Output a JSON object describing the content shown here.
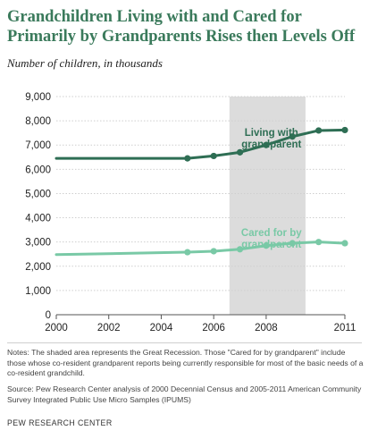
{
  "title": "Grandchildren Living with and Cared for Primarily by Grandparents Rises then Levels Off",
  "subtitle": "Number of children, in thousands",
  "notes": "Notes: The shaded area represents the Great Recession. Those \"Cared for by grandparent\" include those whose co-resident grandparent reports being currently responsible for most of the basic needs of a co-resident grandchild.",
  "source": "Source: Pew Research Center analysis of 2000 Decennial Census and 2005-2011 American Community Survey Integrated Public Use Micro Samples (IPUMS)",
  "footer": "PEW RESEARCH CENTER",
  "colors": {
    "title": "#3a7a5b",
    "living": "#2e6e54",
    "cared": "#79c9a6",
    "shade": "#dcdcdc"
  },
  "chart_data": {
    "type": "line",
    "title": "",
    "xlabel": "",
    "ylabel": "",
    "xlim": [
      2000,
      2011
    ],
    "ylim": [
      0,
      9000
    ],
    "yticks": [
      0,
      1000,
      2000,
      3000,
      4000,
      5000,
      6000,
      7000,
      8000,
      9000
    ],
    "ytick_labels": [
      "0",
      "1,000",
      "2,000",
      "3,000",
      "4,000",
      "5,000",
      "6,000",
      "7,000",
      "8,000",
      "9,000"
    ],
    "xticks": [
      2000,
      2002,
      2004,
      2006,
      2008,
      2011
    ],
    "xtick_labels": [
      "2000",
      "2002",
      "2004",
      "2006",
      "2008",
      "2011"
    ],
    "shaded_range": [
      2006.6,
      2009.5
    ],
    "grid": true,
    "series": [
      {
        "name": "Living with grandparent",
        "label_lines": [
          "Living with",
          "grandparent"
        ],
        "label_anchor": [
          2008.2,
          7380
        ],
        "x": [
          2000,
          2005,
          2006,
          2007,
          2008,
          2009,
          2010,
          2011
        ],
        "y": [
          6450,
          6450,
          6550,
          6700,
          7000,
          7350,
          7600,
          7620
        ]
      },
      {
        "name": "Cared for by grandparent",
        "label_lines": [
          "Cared for by",
          "grandparent"
        ],
        "label_anchor": [
          2008.2,
          3250
        ],
        "x": [
          2000,
          2005,
          2006,
          2007,
          2008,
          2009,
          2010,
          2011
        ],
        "y": [
          2480,
          2580,
          2620,
          2700,
          2850,
          2950,
          3000,
          2950
        ]
      }
    ]
  }
}
